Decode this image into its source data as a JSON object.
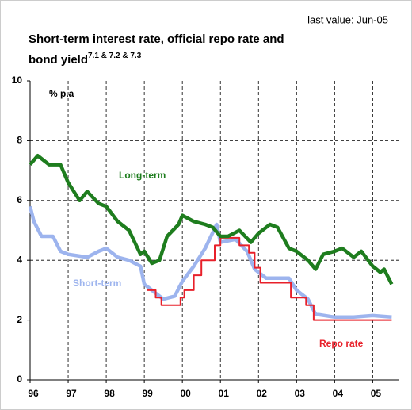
{
  "chart_data": {
    "type": "line",
    "note": "last value: Jun-05",
    "title_lines": [
      "Short-term interest rate, official repo rate and",
      "bond yield"
    ],
    "title_superscript": "7.1 & 7.2 & 7.3",
    "y_unit": "% p.a",
    "xlim": [
      1996,
      2005.7
    ],
    "xticks": [
      {
        "value": 1996,
        "label": "96"
      },
      {
        "value": 1997,
        "label": "97"
      },
      {
        "value": 1998,
        "label": "98"
      },
      {
        "value": 1999,
        "label": "99"
      },
      {
        "value": 2000,
        "label": "00"
      },
      {
        "value": 2001,
        "label": "01"
      },
      {
        "value": 2002,
        "label": "02"
      },
      {
        "value": 2003,
        "label": "03"
      },
      {
        "value": 2004,
        "label": "04"
      },
      {
        "value": 2005,
        "label": "05"
      }
    ],
    "ylim": [
      0,
      10
    ],
    "yticks": [
      0,
      2,
      4,
      6,
      8,
      10
    ],
    "grid": true,
    "series": [
      {
        "name": "Short-term",
        "color": "#9db4ee",
        "x": [
          1996.0,
          1996.1,
          1996.3,
          1996.6,
          1996.8,
          1997.0,
          1997.5,
          1997.8,
          1998.0,
          1998.3,
          1998.6,
          1998.9,
          1999.0,
          1999.3,
          1999.5,
          1999.8,
          2000.0,
          2000.3,
          2000.6,
          2000.9,
          2001.0,
          2001.4,
          2001.7,
          2001.9,
          2002.2,
          2002.5,
          2002.8,
          2003.0,
          2003.3,
          2003.5,
          2004.0,
          2004.5,
          2005.0,
          2005.5
        ],
        "values": [
          5.8,
          5.3,
          4.8,
          4.8,
          4.3,
          4.2,
          4.1,
          4.3,
          4.4,
          4.1,
          4.0,
          3.8,
          3.2,
          2.9,
          2.7,
          2.8,
          3.3,
          3.8,
          4.4,
          5.2,
          4.6,
          4.7,
          4.3,
          3.7,
          3.4,
          3.4,
          3.4,
          3.0,
          2.7,
          2.2,
          2.1,
          2.1,
          2.15,
          2.1
        ]
      },
      {
        "name": "Repo rate",
        "color": "#e8202a",
        "x": [
          1999.08,
          1999.3,
          1999.3,
          1999.45,
          1999.45,
          1999.95,
          1999.95,
          2000.05,
          2000.05,
          2000.3,
          2000.3,
          2000.5,
          2000.5,
          2000.85,
          2000.85,
          2001.0,
          2001.0,
          2001.5,
          2001.5,
          2001.75,
          2001.75,
          2001.9,
          2001.9,
          2002.05,
          2002.05,
          2002.85,
          2002.85,
          2003.25,
          2003.25,
          2003.45,
          2003.45,
          2005.5
        ],
        "values": [
          3.0,
          3.0,
          2.75,
          2.75,
          2.5,
          2.5,
          2.75,
          2.75,
          3.0,
          3.0,
          3.5,
          3.5,
          4.0,
          4.0,
          4.5,
          4.5,
          4.75,
          4.75,
          4.5,
          4.5,
          4.25,
          4.25,
          3.75,
          3.75,
          3.25,
          3.25,
          2.75,
          2.75,
          2.5,
          2.5,
          2.0,
          2.0
        ]
      },
      {
        "name": "Long-term",
        "color": "#1e7d1e",
        "x": [
          1996.0,
          1996.2,
          1996.5,
          1996.8,
          1997.0,
          1997.3,
          1997.5,
          1997.8,
          1998.0,
          1998.3,
          1998.6,
          1998.9,
          1999.0,
          1999.2,
          1999.4,
          1999.6,
          1999.9,
          2000.0,
          2000.3,
          2000.6,
          2000.8,
          2001.0,
          2001.2,
          2001.5,
          2001.8,
          2002.0,
          2002.3,
          2002.5,
          2002.8,
          2003.0,
          2003.3,
          2003.5,
          2003.7,
          2004.0,
          2004.2,
          2004.5,
          2004.7,
          2005.0,
          2005.2,
          2005.3,
          2005.5
        ],
        "values": [
          7.2,
          7.5,
          7.2,
          7.2,
          6.6,
          6.0,
          6.3,
          5.9,
          5.8,
          5.3,
          5.0,
          4.2,
          4.3,
          3.9,
          4.0,
          4.8,
          5.2,
          5.5,
          5.3,
          5.2,
          5.1,
          4.8,
          4.8,
          5.0,
          4.6,
          4.9,
          5.2,
          5.1,
          4.4,
          4.3,
          4.0,
          3.7,
          4.2,
          4.3,
          4.4,
          4.1,
          4.3,
          3.8,
          3.6,
          3.7,
          3.2
        ]
      }
    ]
  }
}
